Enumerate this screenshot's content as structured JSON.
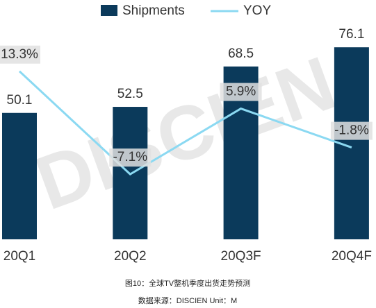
{
  "chart_data": {
    "type": "bar-line",
    "categories": [
      "20Q1",
      "20Q2",
      "20Q3F",
      "20Q4F"
    ],
    "series": [
      {
        "name": "Shipments",
        "color": "#0b3a5b",
        "values": [
          50.1,
          52.5,
          68.5,
          76.1
        ]
      },
      {
        "name": "YOY",
        "color": "#8bd9f2",
        "axis": "y2",
        "values": [
          13.3,
          -7.1,
          5.9,
          -1.8
        ],
        "value_labels": [
          "13.3%",
          "-7.1%",
          "5.9%",
          "-1.8%"
        ]
      }
    ],
    "ylim": [
      0,
      80
    ],
    "y2lim": [
      -20,
      20
    ],
    "watermark": "DISCIEN",
    "caption": "图10：全球TV整机季度出货走势预测",
    "source": "数据来源：DISCIEN Unit：M"
  }
}
